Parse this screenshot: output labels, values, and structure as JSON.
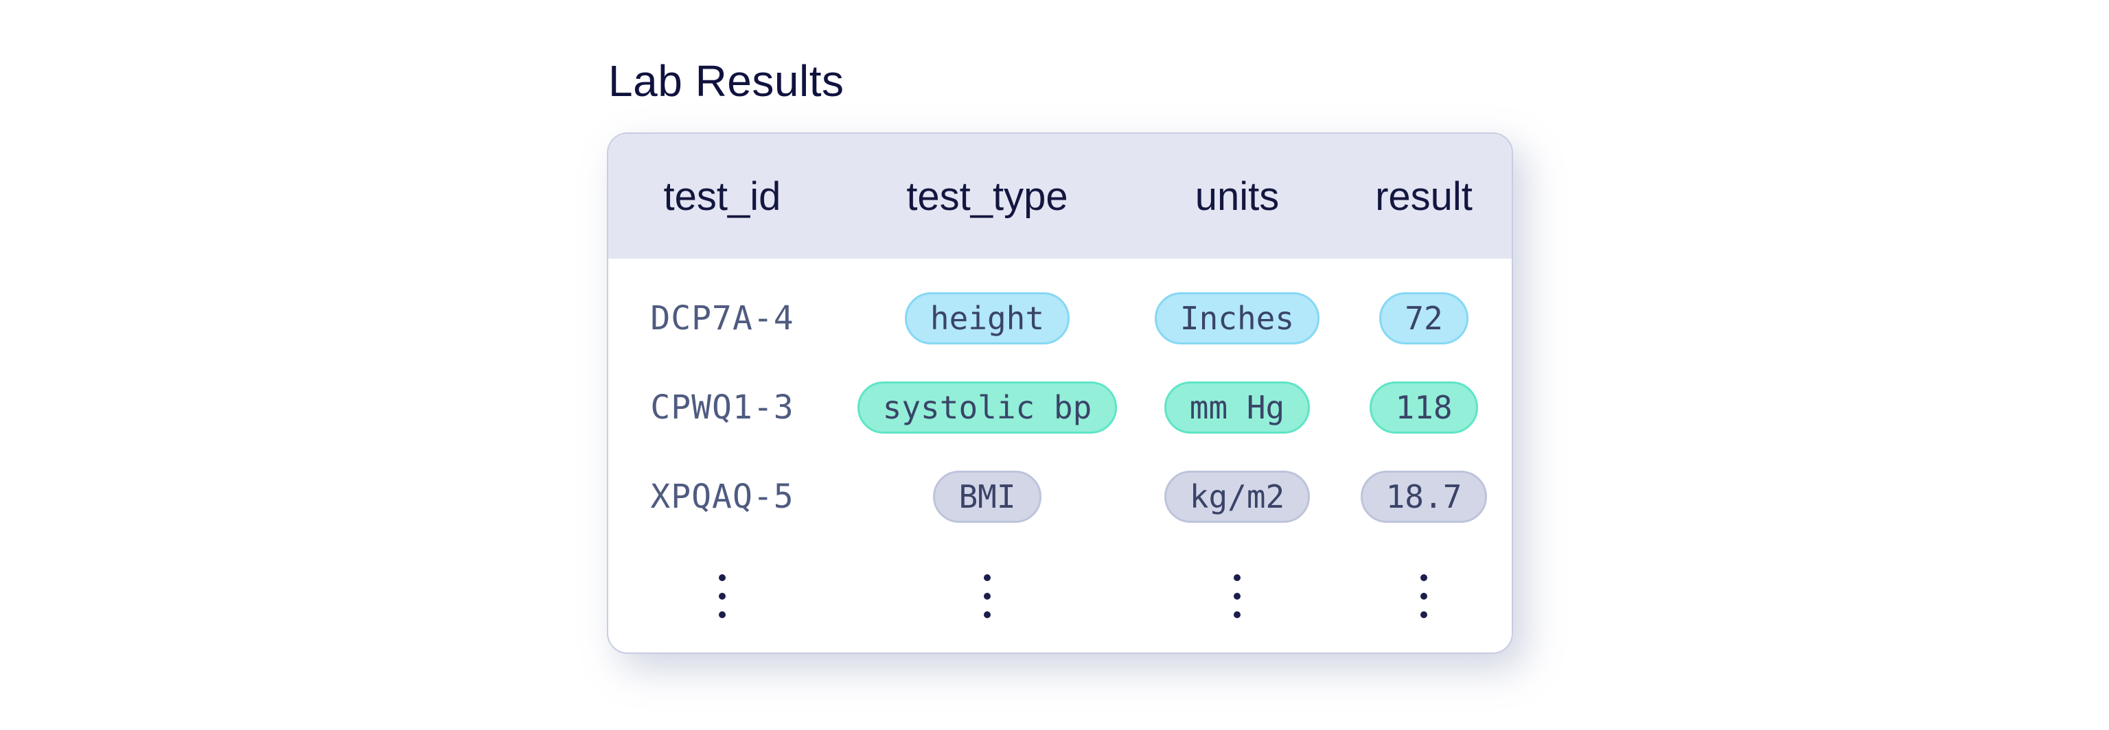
{
  "page": {
    "title": "Lab Results"
  },
  "table": {
    "columns": [
      "test_id",
      "test_type",
      "units",
      "result"
    ],
    "rows": [
      {
        "test_id": "DCP7A-4",
        "test_type": "height",
        "units": "Inches",
        "result": "72",
        "variant": "blue"
      },
      {
        "test_id": "CPWQ1-3",
        "test_type": "systolic bp",
        "units": "mm Hg",
        "result": "118",
        "variant": "green"
      },
      {
        "test_id": "XPQAQ-5",
        "test_type": "BMI",
        "units": "kg/m2",
        "result": "18.7",
        "variant": "gray"
      }
    ],
    "more_rows_indicator": "⋮",
    "colors": {
      "blue": {
        "bg": "#b3e7fa",
        "border": "#86d8f3"
      },
      "green": {
        "bg": "#93efd8",
        "border": "#5fe5c6"
      },
      "gray": {
        "bg": "#d3d6e7",
        "border": "#bdc4db"
      }
    },
    "theme": {
      "header_bg": "#e3e5f2",
      "header_text": "#13163f",
      "id_text": "#4f5b80",
      "pill_text": "#3a4468",
      "title_text": "#10123e",
      "card_border": "#c7cde1"
    }
  }
}
